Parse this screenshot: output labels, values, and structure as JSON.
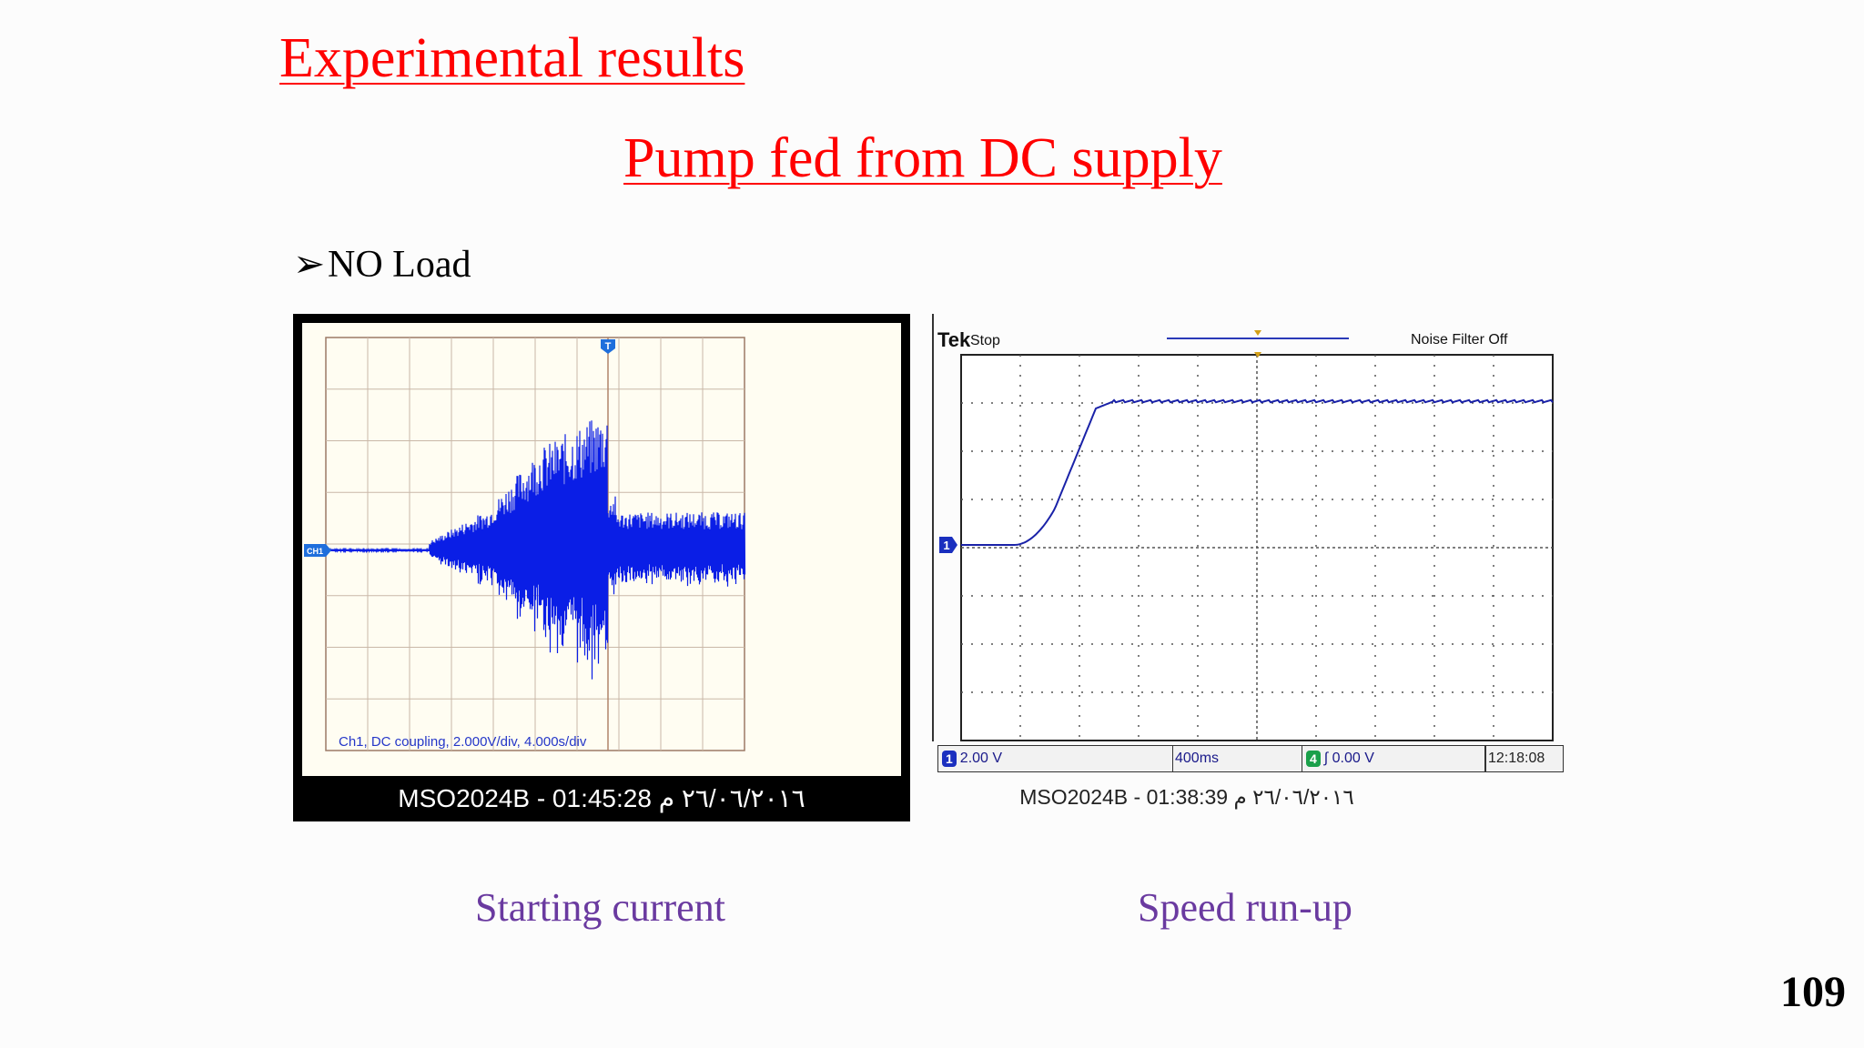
{
  "slide": {
    "title": "Experimental results",
    "subtitle": "Pump fed from DC supply",
    "bullet": "NO Load",
    "bullet_symbol": "➢",
    "page_number": "109",
    "caption_left": "Starting current",
    "caption_right": "Speed run-up"
  },
  "scope_left": {
    "channel_marker": "CH1",
    "trigger_marker": "T",
    "settings": "Ch1, DC coupling, 2.000V/div, 4.000s/div",
    "footer": "MSO2024B - 01:45:28 ٢٦/٠٦/٢٠١٦ م",
    "trace_color": "#0a1ee6"
  },
  "scope_right": {
    "brand": "Tek",
    "state": "Stop",
    "noise_filter": "Noise Filter Off",
    "channel_marker": "1",
    "ch1_scale": "2.00 V",
    "timebase": "400ms",
    "trigger_channel": "4",
    "trigger_level": "∫ 0.00 V",
    "time": "12:18:08",
    "footer": "MSO2024B - 01:38:39 ٢٦/٠٦/٢٠١٦ م",
    "trace_color": "#1a22a8"
  }
}
